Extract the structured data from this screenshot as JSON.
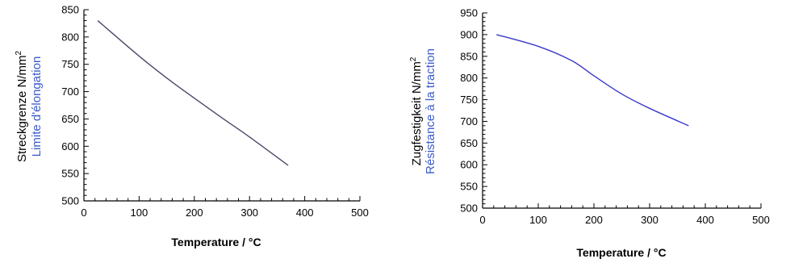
{
  "chart_data": [
    {
      "type": "line",
      "xlabel": "Temperature / °C",
      "ylabel": "Streckgrenze N/mm²",
      "ylabel_secondary": "Limite d'élongation",
      "xlim": [
        0,
        500
      ],
      "ylim": [
        500,
        850
      ],
      "x_ticks": [
        "0",
        "100",
        "200",
        "300",
        "400",
        "500"
      ],
      "y_ticks": [
        "500",
        "550",
        "600",
        "650",
        "700",
        "750",
        "800",
        "850"
      ],
      "grid": false,
      "line_color": "#4a4a6a",
      "series": [
        {
          "x": [
            25,
            100,
            150,
            200,
            250,
            300,
            370
          ],
          "y": [
            830,
            765,
            725,
            688,
            652,
            617,
            565
          ]
        }
      ]
    },
    {
      "type": "line",
      "xlabel": "Temperature / °C",
      "ylabel": "Zugfestigkeit N/mm²",
      "ylabel_secondary": "Résistance à la traction",
      "xlim": [
        0,
        500
      ],
      "ylim": [
        500,
        950
      ],
      "x_ticks": [
        "0",
        "100",
        "200",
        "300",
        "400",
        "500"
      ],
      "y_ticks": [
        "500",
        "550",
        "600",
        "650",
        "700",
        "750",
        "800",
        "850",
        "900",
        "950"
      ],
      "grid": false,
      "line_color": "#3a3acc",
      "series": [
        {
          "x": [
            25,
            100,
            160,
            200,
            250,
            300,
            370
          ],
          "y": [
            900,
            873,
            840,
            805,
            763,
            730,
            690
          ]
        }
      ]
    }
  ]
}
